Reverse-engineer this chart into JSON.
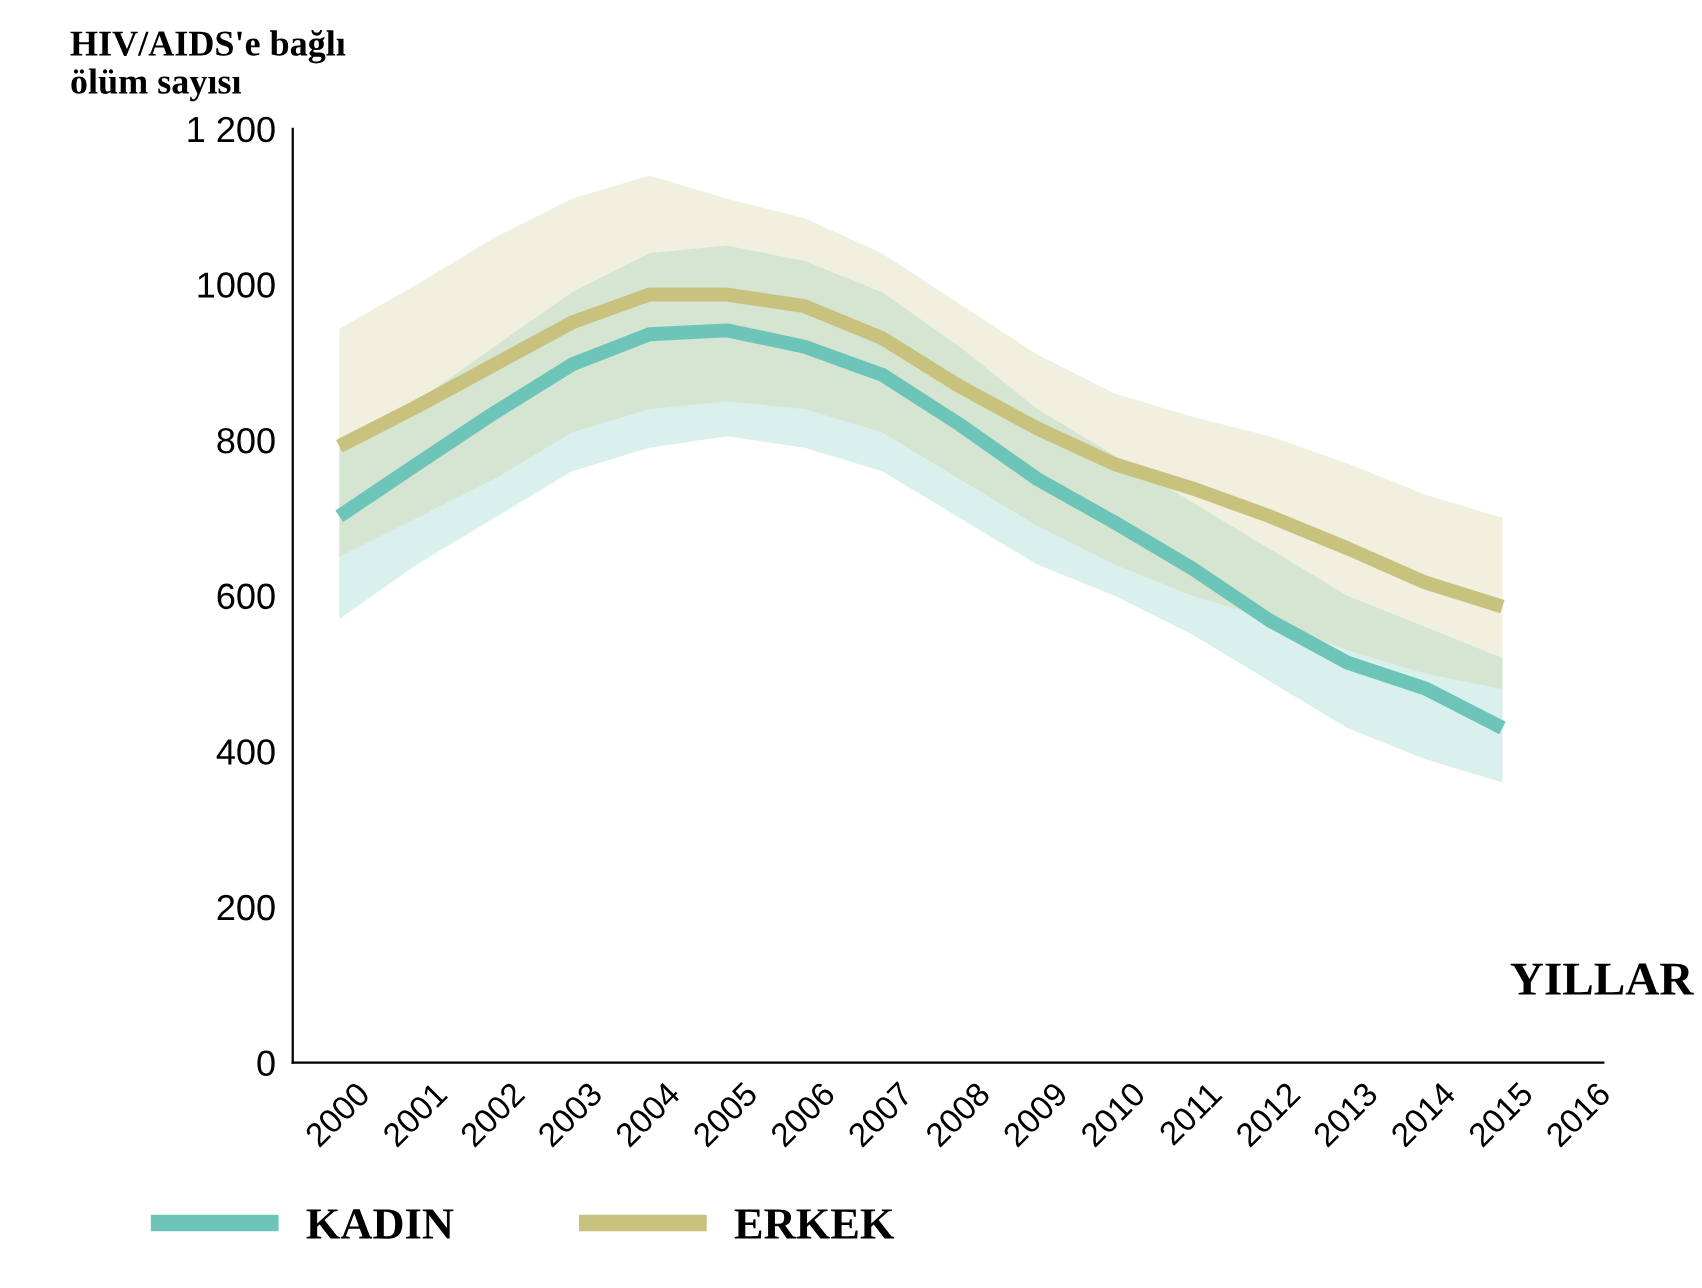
{
  "chart_data": {
    "type": "line",
    "ylabel": "HIV/AIDS'e bağlı\nölüm sayısı",
    "xlabel": "YILLAR",
    "x": [
      2000,
      2001,
      2002,
      2003,
      2004,
      2005,
      2006,
      2007,
      2008,
      2009,
      2010,
      2011,
      2012,
      2013,
      2014,
      2015
    ],
    "series": [
      {
        "name": "KADIN",
        "color": "#6cc5b8",
        "values": [
          702,
          769,
          835,
          897,
          936,
          941,
          920,
          884,
          820,
          750,
          694,
          635,
          568,
          514,
          481,
          430
        ],
        "lower": [
          570,
          640,
          700,
          760,
          790,
          805,
          790,
          760,
          700,
          640,
          600,
          550,
          490,
          430,
          390,
          360
        ],
        "upper": [
          790,
          850,
          920,
          990,
          1040,
          1050,
          1030,
          990,
          920,
          840,
          780,
          720,
          660,
          600,
          560,
          520
        ]
      },
      {
        "name": "ERKEK",
        "color": "#c9c27f",
        "values": [
          792,
          843,
          897,
          951,
          987,
          987,
          972,
          931,
          869,
          815,
          769,
          738,
          702,
          661,
          617,
          586
        ],
        "lower": [
          650,
          700,
          750,
          810,
          840,
          850,
          840,
          810,
          750,
          690,
          640,
          600,
          570,
          530,
          500,
          480
        ],
        "upper": [
          943,
          1000,
          1060,
          1110,
          1140,
          1110,
          1085,
          1040,
          975,
          910,
          860,
          830,
          805,
          770,
          730,
          700
        ]
      }
    ],
    "xlim": [
      1999.4,
      2016.3
    ],
    "xticks": [
      2000,
      2001,
      2002,
      2003,
      2004,
      2005,
      2006,
      2007,
      2008,
      2009,
      2010,
      2011,
      2012,
      2013,
      2014,
      2015,
      2016
    ],
    "ylim": [
      0,
      1200
    ],
    "yticks": [
      0,
      200,
      400,
      600,
      800,
      1000,
      {
        "value": 1200,
        "label": "1 200"
      }
    ],
    "grid": false,
    "legend": "bottom",
    "marker": "none",
    "line_style": "solid"
  }
}
